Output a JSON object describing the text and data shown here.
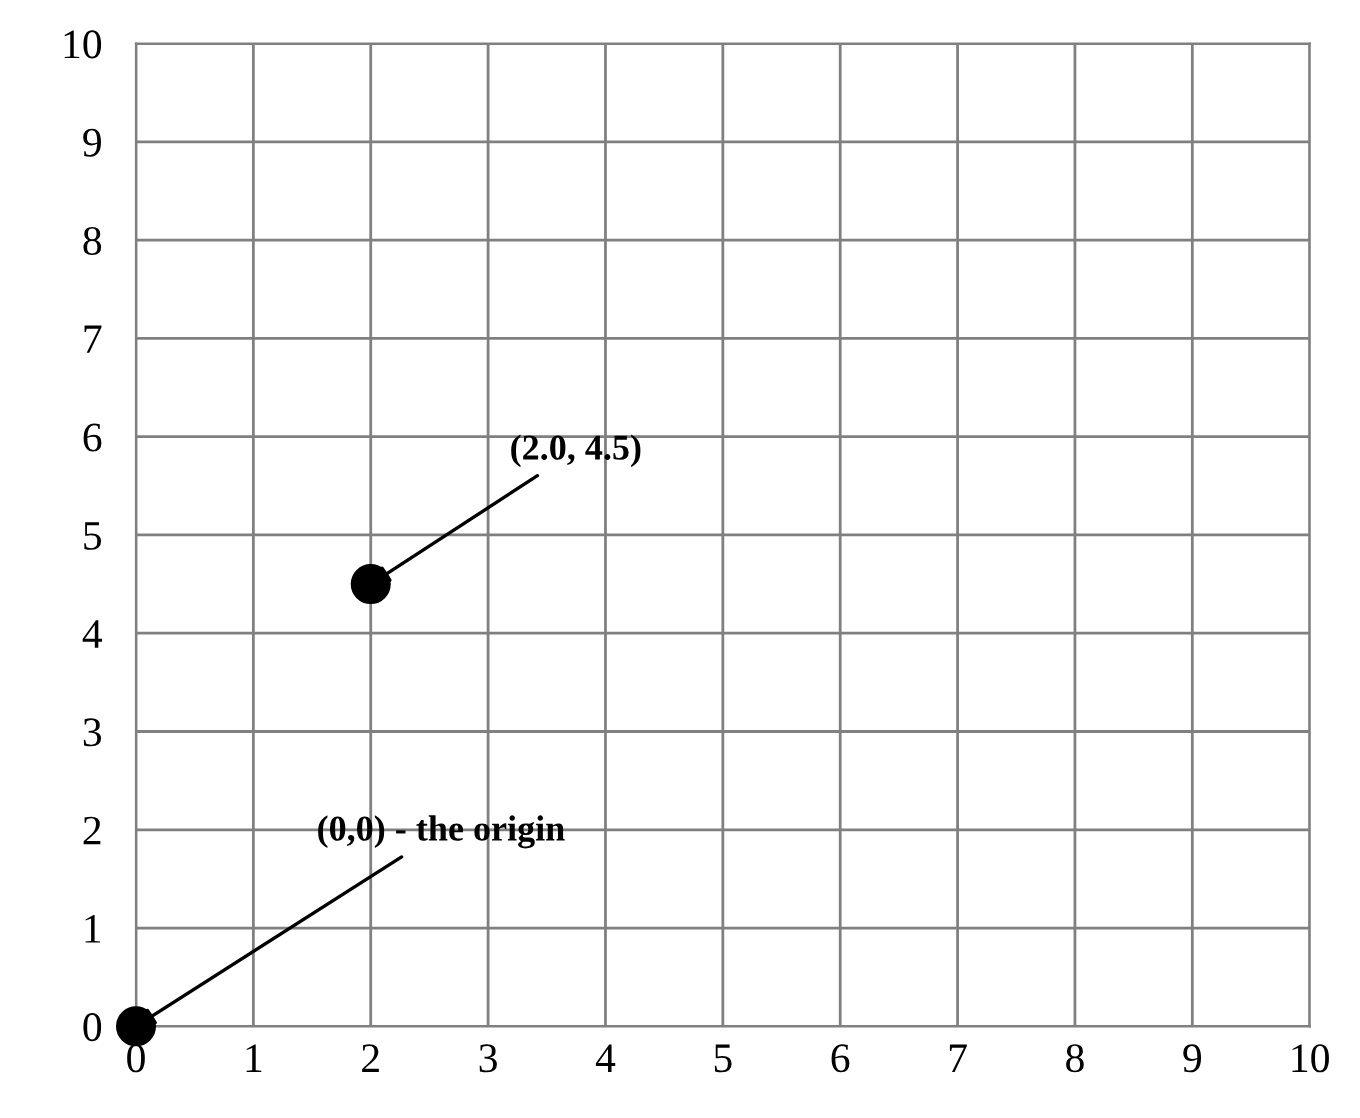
{
  "chart_data": {
    "type": "scatter",
    "x": [
      0,
      2
    ],
    "values": [
      0,
      4.5
    ],
    "color": "#000000",
    "marker": "circle",
    "xlim": [
      0,
      10
    ],
    "ylim": [
      0,
      10
    ],
    "xticks": [
      0,
      1,
      2,
      3,
      4,
      5,
      6,
      7,
      8,
      9,
      10
    ],
    "yticks": [
      0,
      1,
      2,
      3,
      4,
      5,
      6,
      7,
      8,
      9,
      10
    ],
    "grid": true,
    "annotations": [
      {
        "text": "(0,0) - the origin",
        "x": 0,
        "y": 0
      },
      {
        "text": "(2.0, 4.5)",
        "x": 2,
        "y": 4.5
      }
    ]
  }
}
